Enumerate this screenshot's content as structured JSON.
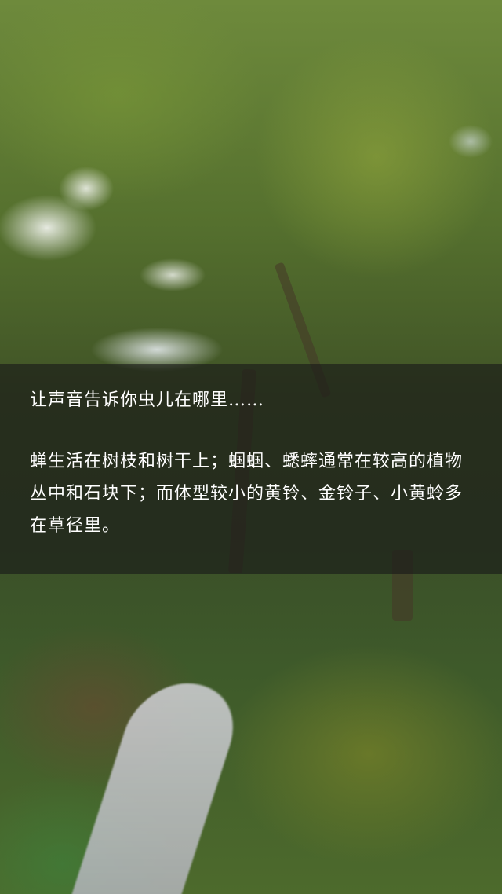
{
  "caption": {
    "title": "让声音告诉你虫儿在哪里……",
    "body": "蝉生活在树枝和树干上；蝈蝈、蟋蟀通常在较高的植物丛中和石块下；而体型较小的黄铃、金铃子、小黄蛉多在草径里。"
  }
}
